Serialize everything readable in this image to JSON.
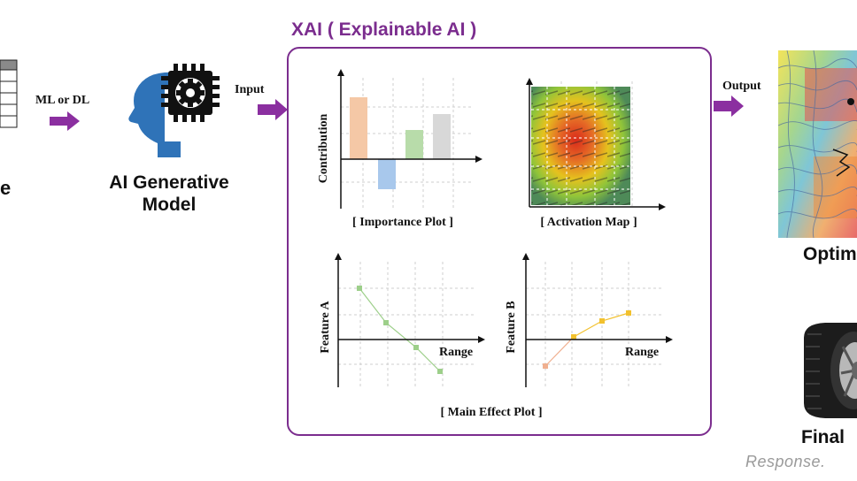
{
  "colors": {
    "purple": "#7b2d8e",
    "arrow": "#8b2fa0",
    "importance_bars": [
      "#f5c8a6",
      "#a8c8ec",
      "#b8dcaa",
      "#d8d8d8"
    ],
    "feature_a": "#9dcf8a",
    "feature_b": "#f2c12e",
    "feature_b_start": "#f0b090"
  },
  "left": {
    "partial_label": "e",
    "arrow_label": "ML or DL"
  },
  "model": {
    "icon": "head-chip-icon",
    "title_line1": "AI Generative",
    "title_line2": "Model"
  },
  "input_label": "Input",
  "output_label": "Output",
  "xai": {
    "title": "XAI ( Explainable AI )",
    "importance": {
      "ylabel": "Contribution",
      "caption": "[ Importance Plot ]"
    },
    "activation": {
      "caption": "[ Activation Map ]"
    },
    "main_effect": {
      "caption": "[ Main Effect Plot ]",
      "a": {
        "ylabel": "Feature A",
        "xlabel": "Range"
      },
      "b": {
        "ylabel": "Feature B",
        "xlabel": "Range"
      }
    }
  },
  "right": {
    "optimal_partial": "Optim",
    "final_partial": "Final"
  },
  "watermark": "Response."
}
